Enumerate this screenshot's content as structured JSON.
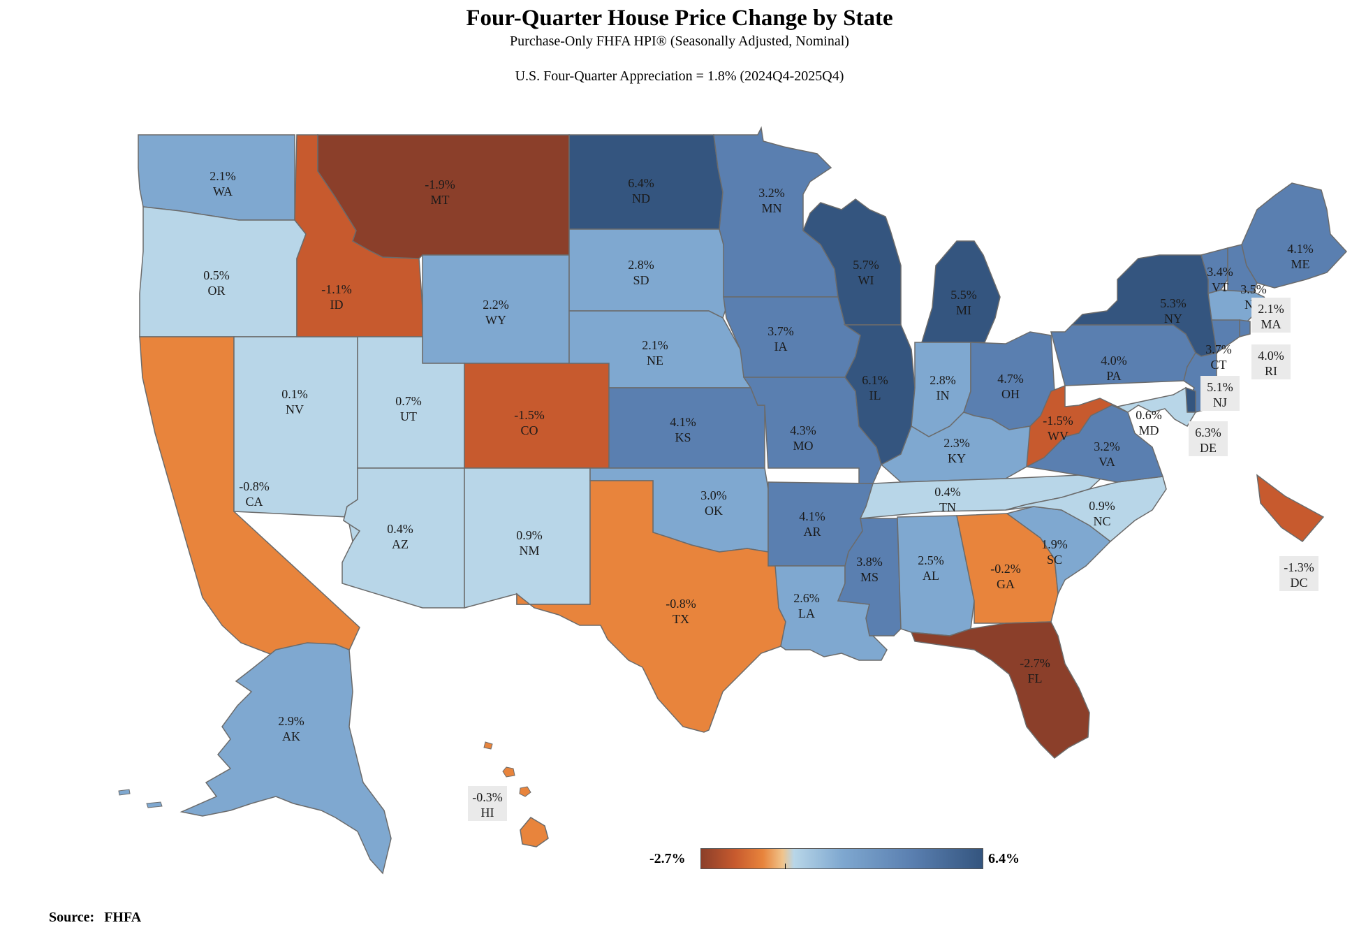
{
  "title": "Four-Quarter House Price Change by State",
  "subtitle": "Purchase-Only FHFA HPI® (Seasonally Adjusted, Nominal)",
  "note": "U.S. Four-Quarter Appreciation = 1.8% (2024Q4-2025Q4)",
  "source_label": "Source:",
  "source_value": "FHFA",
  "legend": {
    "min_label": "-2.7%",
    "max_label": "6.4%",
    "min": -2.7,
    "max": 6.4,
    "colors": [
      "#8b3f2a",
      "#c75a2e",
      "#e8843c",
      "#f0c48c",
      "#b8d6e8",
      "#7fa8d0",
      "#5a7fb0",
      "#34557f"
    ]
  },
  "chart_data": {
    "type": "choropleth",
    "states": [
      {
        "abbr": "WA",
        "value": "2.1%"
      },
      {
        "abbr": "OR",
        "value": "0.5%"
      },
      {
        "abbr": "CA",
        "value": "-0.8%"
      },
      {
        "abbr": "NV",
        "value": "0.1%"
      },
      {
        "abbr": "ID",
        "value": "-1.1%"
      },
      {
        "abbr": "MT",
        "value": "-1.9%"
      },
      {
        "abbr": "WY",
        "value": "2.2%"
      },
      {
        "abbr": "UT",
        "value": "0.7%"
      },
      {
        "abbr": "AZ",
        "value": "0.4%"
      },
      {
        "abbr": "CO",
        "value": "-1.5%"
      },
      {
        "abbr": "NM",
        "value": "0.9%"
      },
      {
        "abbr": "ND",
        "value": "6.4%"
      },
      {
        "abbr": "SD",
        "value": "2.8%"
      },
      {
        "abbr": "NE",
        "value": "2.1%"
      },
      {
        "abbr": "KS",
        "value": "4.1%"
      },
      {
        "abbr": "OK",
        "value": "3.0%"
      },
      {
        "abbr": "TX",
        "value": "-0.8%"
      },
      {
        "abbr": "MN",
        "value": "3.2%"
      },
      {
        "abbr": "IA",
        "value": "3.7%"
      },
      {
        "abbr": "MO",
        "value": "4.3%"
      },
      {
        "abbr": "AR",
        "value": "4.1%"
      },
      {
        "abbr": "LA",
        "value": "2.6%"
      },
      {
        "abbr": "WI",
        "value": "5.7%"
      },
      {
        "abbr": "IL",
        "value": "6.1%"
      },
      {
        "abbr": "MI",
        "value": "5.5%"
      },
      {
        "abbr": "IN",
        "value": "2.8%"
      },
      {
        "abbr": "OH",
        "value": "4.7%"
      },
      {
        "abbr": "KY",
        "value": "2.3%"
      },
      {
        "abbr": "TN",
        "value": "0.4%"
      },
      {
        "abbr": "MS",
        "value": "3.8%"
      },
      {
        "abbr": "AL",
        "value": "2.5%"
      },
      {
        "abbr": "GA",
        "value": "-0.2%"
      },
      {
        "abbr": "FL",
        "value": "-2.7%"
      },
      {
        "abbr": "SC",
        "value": "1.9%"
      },
      {
        "abbr": "NC",
        "value": "0.9%"
      },
      {
        "abbr": "VA",
        "value": "3.2%"
      },
      {
        "abbr": "WV",
        "value": "-1.5%"
      },
      {
        "abbr": "PA",
        "value": "4.0%"
      },
      {
        "abbr": "NY",
        "value": "5.3%"
      },
      {
        "abbr": "VT",
        "value": "3.4%"
      },
      {
        "abbr": "NH",
        "value": "3.5%"
      },
      {
        "abbr": "ME",
        "value": "4.1%"
      },
      {
        "abbr": "MA",
        "value": "2.1%"
      },
      {
        "abbr": "RI",
        "value": "4.0%"
      },
      {
        "abbr": "CT",
        "value": "3.7%"
      },
      {
        "abbr": "NJ",
        "value": "5.1%"
      },
      {
        "abbr": "DE",
        "value": "6.3%"
      },
      {
        "abbr": "MD",
        "value": "0.6%"
      },
      {
        "abbr": "DC",
        "value": "-1.3%"
      },
      {
        "abbr": "AK",
        "value": "2.9%"
      },
      {
        "abbr": "HI",
        "value": "-0.3%"
      }
    ]
  }
}
